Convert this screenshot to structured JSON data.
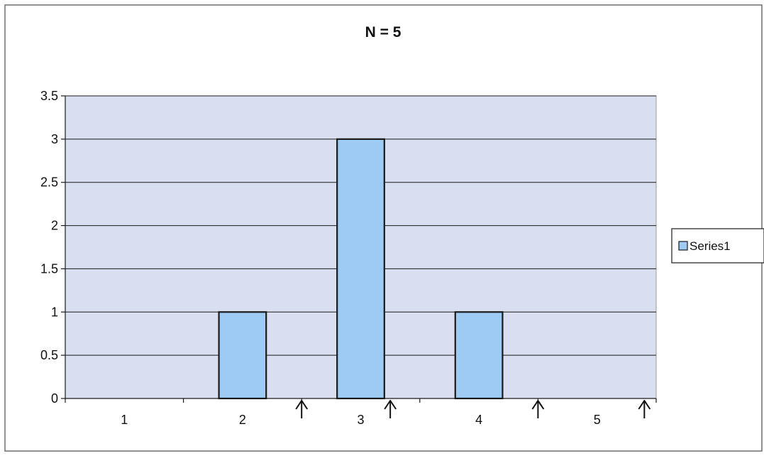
{
  "chart_data": {
    "type": "bar",
    "title": "N = 5",
    "xlabel": "",
    "ylabel": "",
    "categories": [
      "1",
      "2",
      "3",
      "4",
      "5"
    ],
    "series": [
      {
        "name": "Series1",
        "values": [
          0,
          1,
          3,
          1,
          0
        ]
      }
    ],
    "ylim": [
      0,
      3.5
    ],
    "yticks": [
      "0",
      "0.5",
      "1",
      "1.5",
      "2",
      "2.5",
      "3",
      "3.5"
    ],
    "grid": true,
    "legend": "right",
    "annotations": [
      {
        "type": "arrow-up",
        "x": 1.5
      },
      {
        "type": "arrow-up",
        "x": 2.25
      },
      {
        "type": "arrow-up",
        "x": 3.5
      },
      {
        "type": "arrow-up",
        "x": 4.4
      }
    ],
    "colors": {
      "plot_background": "#d9dff0",
      "bar_fill": "#9ecbf3",
      "bar_stroke": "#1a1a1a",
      "gridline": "#1a1a1a"
    }
  }
}
